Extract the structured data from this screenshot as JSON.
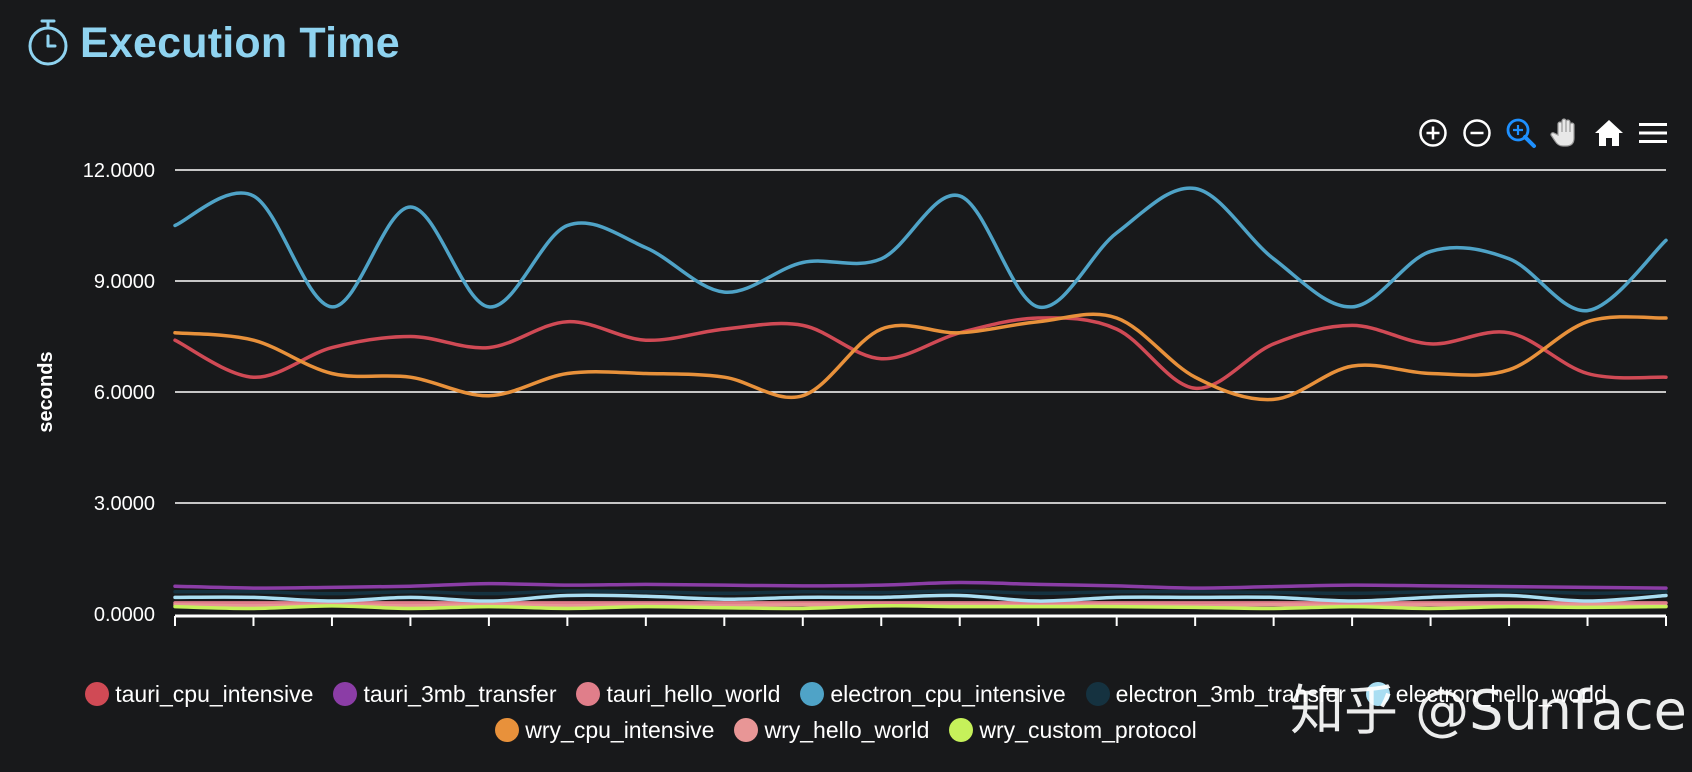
{
  "header": {
    "title": "Execution Time",
    "icon": "stopwatch-icon",
    "title_color": "#8fd3f0"
  },
  "toolbar": {
    "items": [
      {
        "name": "zoom-in-icon",
        "active": false
      },
      {
        "name": "zoom-out-icon",
        "active": false
      },
      {
        "name": "selection-zoom-icon",
        "active": true
      },
      {
        "name": "pan-hand-icon",
        "active": false
      },
      {
        "name": "reset-home-icon",
        "active": false
      },
      {
        "name": "menu-icon",
        "active": false
      }
    ],
    "active_color": "#1e90ff"
  },
  "watermark": "知乎 @Sunface",
  "chart_data": {
    "type": "line",
    "title": "Execution Time",
    "ylabel": "seconds",
    "xlabel": "",
    "ylim": [
      0,
      12
    ],
    "yticks": [
      "0.0000",
      "3.0000",
      "6.0000",
      "9.0000",
      "12.0000"
    ],
    "grid": true,
    "legend_position": "bottom",
    "x": [
      0,
      1,
      2,
      3,
      4,
      5,
      6,
      7,
      8,
      9,
      10,
      11,
      12,
      13,
      14,
      15,
      16,
      17,
      18,
      19
    ],
    "series": [
      {
        "name": "tauri_cpu_intensive",
        "color": "#d04a55",
        "values": [
          7.4,
          6.4,
          7.2,
          7.5,
          7.2,
          7.9,
          7.4,
          7.7,
          7.8,
          6.9,
          7.6,
          8.0,
          7.7,
          6.1,
          7.3,
          7.8,
          7.3,
          7.6,
          6.5,
          6.4
        ]
      },
      {
        "name": "tauri_3mb_transfer",
        "color": "#8b3da6",
        "values": [
          0.75,
          0.7,
          0.72,
          0.75,
          0.82,
          0.78,
          0.8,
          0.78,
          0.76,
          0.78,
          0.85,
          0.8,
          0.76,
          0.7,
          0.74,
          0.78,
          0.76,
          0.74,
          0.72,
          0.7
        ]
      },
      {
        "name": "tauri_hello_world",
        "color": "#e07e8a",
        "values": [
          0.3,
          0.3,
          0.3,
          0.3,
          0.3,
          0.3,
          0.3,
          0.3,
          0.3,
          0.3,
          0.3,
          0.3,
          0.3,
          0.3,
          0.3,
          0.3,
          0.3,
          0.3,
          0.3,
          0.3
        ]
      },
      {
        "name": "electron_cpu_intensive",
        "color": "#4fa3c7",
        "values": [
          10.5,
          11.3,
          8.3,
          11.0,
          8.3,
          10.5,
          9.9,
          8.7,
          9.5,
          9.6,
          11.3,
          8.3,
          10.3,
          11.5,
          9.6,
          8.3,
          9.8,
          9.6,
          8.2,
          10.1
        ]
      },
      {
        "name": "electron_3mb_transfer",
        "color": "#153240",
        "values": [
          0.6,
          0.6,
          0.55,
          0.6,
          0.55,
          0.62,
          0.6,
          0.56,
          0.6,
          0.58,
          0.62,
          0.56,
          0.6,
          0.6,
          0.58,
          0.56,
          0.6,
          0.62,
          0.56,
          0.6
        ]
      },
      {
        "name": "electron_hello_world",
        "color": "#a9def2",
        "values": [
          0.45,
          0.45,
          0.35,
          0.45,
          0.35,
          0.5,
          0.48,
          0.4,
          0.45,
          0.45,
          0.5,
          0.35,
          0.45,
          0.45,
          0.45,
          0.35,
          0.45,
          0.5,
          0.35,
          0.5
        ]
      },
      {
        "name": "wry_cpu_intensive",
        "color": "#e8913b",
        "values": [
          7.6,
          7.4,
          6.5,
          6.4,
          5.9,
          6.5,
          6.5,
          6.4,
          5.9,
          7.7,
          7.6,
          7.9,
          8.0,
          6.4,
          5.8,
          6.7,
          6.5,
          6.6,
          7.9,
          8.0
        ]
      },
      {
        "name": "wry_hello_world",
        "color": "#e89696",
        "values": [
          0.25,
          0.22,
          0.25,
          0.22,
          0.25,
          0.22,
          0.25,
          0.22,
          0.25,
          0.22,
          0.25,
          0.22,
          0.25,
          0.22,
          0.25,
          0.22,
          0.25,
          0.22,
          0.25,
          0.22
        ]
      },
      {
        "name": "wry_custom_protocol",
        "color": "#c6f15a",
        "values": [
          0.2,
          0.15,
          0.22,
          0.15,
          0.2,
          0.15,
          0.2,
          0.17,
          0.15,
          0.22,
          0.2,
          0.2,
          0.2,
          0.18,
          0.15,
          0.2,
          0.15,
          0.2,
          0.18,
          0.2
        ]
      }
    ],
    "legend_rows": [
      [
        "tauri_cpu_intensive",
        "tauri_3mb_transfer",
        "tauri_hello_world",
        "electron_cpu_intensive",
        "electron_3mb_transfer",
        "electron_hello_world"
      ],
      [
        "wry_cpu_intensive",
        "wry_hello_world",
        "wry_custom_protocol"
      ]
    ]
  }
}
